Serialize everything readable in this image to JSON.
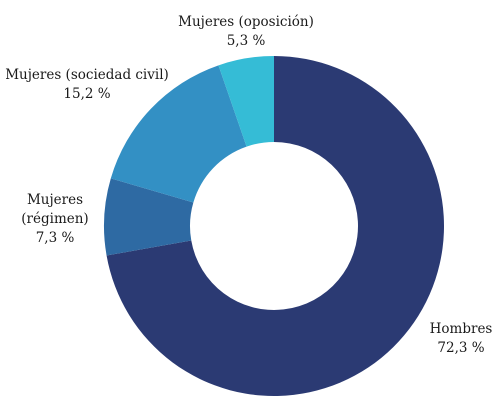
{
  "chart_data": {
    "type": "pie",
    "subtype": "donut",
    "slices": [
      {
        "label": "Hombres",
        "label_lines": [
          "Hombres"
        ],
        "value": 72.3,
        "value_text": "72,3 %",
        "color": "#2b3a73"
      },
      {
        "label": "Mujeres (régimen)",
        "label_lines": [
          "Mujeres",
          "(régimen)"
        ],
        "value": 7.3,
        "value_text": "7,3 %",
        "color": "#2e6aa3"
      },
      {
        "label": "Mujeres (sociedad civil)",
        "label_lines": [
          "Mujeres (sociedad civil)"
        ],
        "value": 15.2,
        "value_text": "15,2 %",
        "color": "#3390c4"
      },
      {
        "label": "Mujeres (oposición)",
        "label_lines": [
          "Mujeres (oposición)"
        ],
        "value": 5.3,
        "value_text": "5,3 %",
        "color": "#35bcd6"
      }
    ],
    "legend": "none"
  }
}
